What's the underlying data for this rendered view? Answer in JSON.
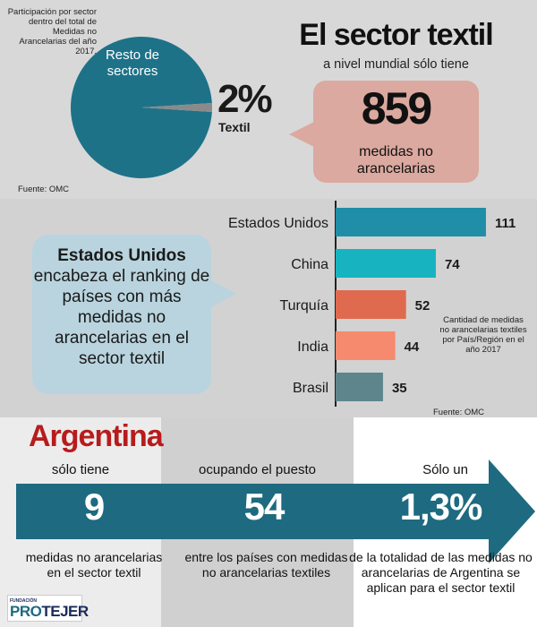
{
  "colors": {
    "teal_dark": "#1e6a80",
    "pie_rest": "#1e7288",
    "pie_textil": "#8a8a8a",
    "bubble_salmon": "#dba99f",
    "bubble_blue": "#b9d4de",
    "title_red": "#b71c1c"
  },
  "pie": {
    "caption": "Participación por sector dentro del total de Medidas no Arancelarias del año 2017.",
    "rest_label": "Resto de sectores",
    "textil_pct": "2%",
    "textil_label": "Textil",
    "source": "Fuente: OMC"
  },
  "headline": {
    "title": "El sector textil",
    "subtitle": "a nivel mundial sólo tiene",
    "big_number": "859",
    "big_label_line1": "medidas no",
    "big_label_line2": "arancelarias"
  },
  "ranking_bubble": {
    "bold": "Estados Unidos",
    "rest": "encabeza el ranking de países con más medidas no arancelarias en el sector textil"
  },
  "chart_note": "Cantidad de medidas no arancelarias textiles por País/Región en el año 2017",
  "chart_source": "Fuente: OMC",
  "chart_data": [
    {
      "type": "pie",
      "title": "Participación por sector dentro del total de Medidas no Arancelarias del año 2017.",
      "categories": [
        "Resto de sectores",
        "Textil"
      ],
      "values": [
        98,
        2
      ],
      "colors": [
        "#1e7288",
        "#8a8a8a"
      ]
    },
    {
      "type": "bar",
      "orientation": "horizontal",
      "title": "Cantidad de medidas no arancelarias textiles por País/Región en el año 2017",
      "categories": [
        "Estados Unidos",
        "China",
        "Turquía",
        "India",
        "Brasil"
      ],
      "values": [
        111,
        74,
        52,
        44,
        35
      ],
      "colors": [
        "#1f8ea6",
        "#17b3c0",
        "#e06a4f",
        "#f58a6e",
        "#5f858c"
      ],
      "xlim": [
        0,
        115
      ]
    }
  ],
  "argentina": {
    "title": "Argentina",
    "col1": {
      "head": "sólo tiene",
      "value": "9",
      "foot1": "medidas no arancelarias",
      "foot2": "en el sector textil"
    },
    "col2": {
      "head": "ocupando el puesto",
      "value": "54",
      "foot1": "entre los países con medidas",
      "foot2": "no arancelarias textiles"
    },
    "col3": {
      "head": "Sólo un",
      "value": "1,3%",
      "foot1": "de la totalidad de las medidas no",
      "foot2": "arancelarias de Argentina se",
      "foot3": "aplican para el sector textil"
    }
  },
  "logo": {
    "small": "FUNDACIÓN",
    "pro": "PRO",
    "tejer": "TEJER"
  }
}
